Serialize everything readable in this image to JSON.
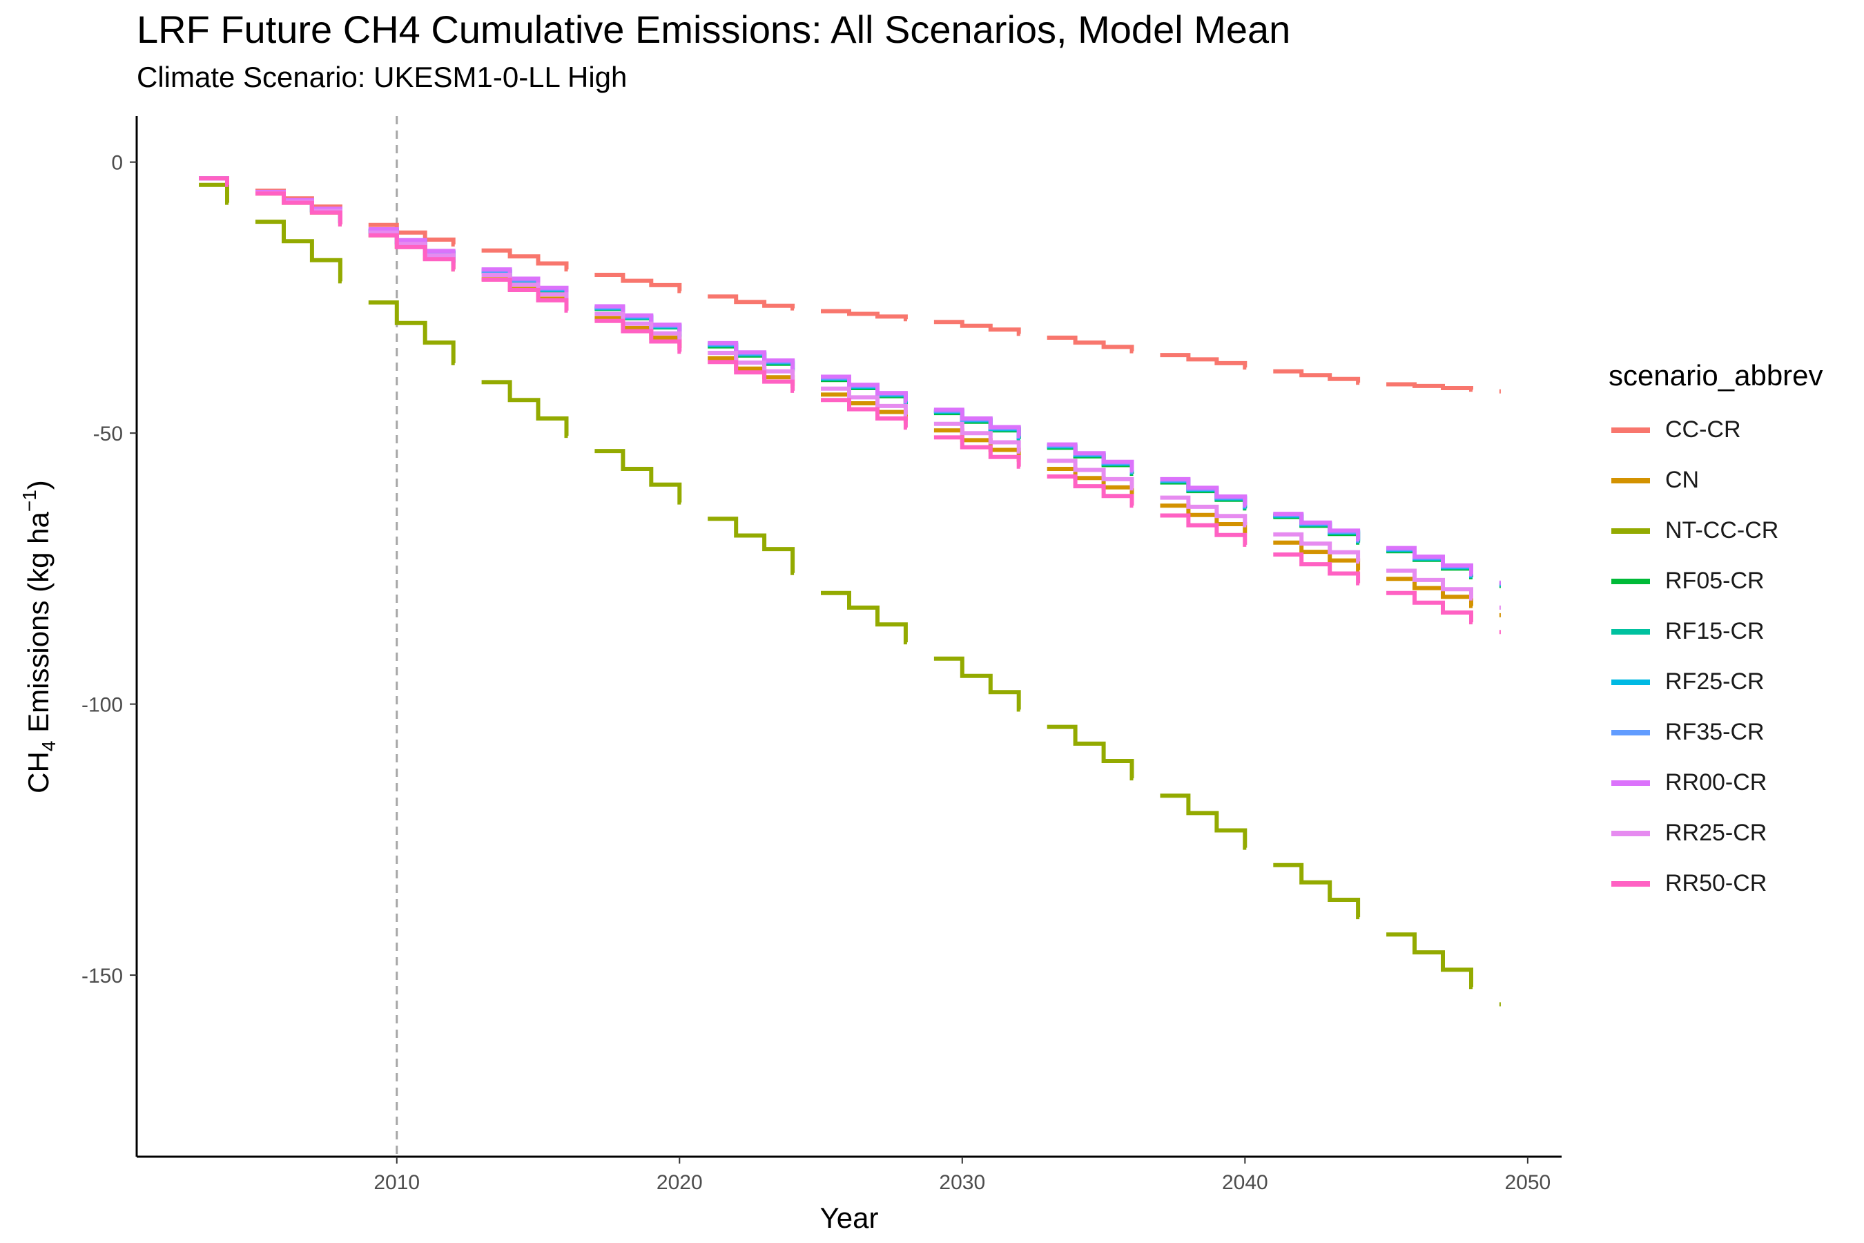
{
  "chart_data": {
    "type": "line",
    "title": "LRF  Future CH4 Cumulative Emissions: All Scenarios, Model Mean",
    "subtitle": "Climate Scenario: UKESM1-0-LL High",
    "xlabel": "Year",
    "ylabel_main": "CH",
    "ylabel_sub": "4",
    "ylabel_rest": " Emissions (kg ha",
    "ylabel_sup": "−1",
    "ylabel_close": ")",
    "xlim": [
      2000.8,
      2051.2
    ],
    "ylim": [
      -183.5,
      8.5
    ],
    "x_ticks": [
      2010,
      2020,
      2030,
      2040,
      2050
    ],
    "y_ticks": [
      0,
      -50,
      -100,
      -150
    ],
    "reference_line_x": 2010,
    "legend_title": "scenario_abbrev",
    "legend_position": "right",
    "grid": false,
    "series": [
      {
        "name": "CC-CR",
        "color": "#F8766D",
        "start_year": 2003,
        "values": [
          -3.0,
          -3.9,
          -5.3,
          -6.7,
          -8.2,
          -10.1,
          -11.6,
          -13.0,
          -14.3,
          -15.2,
          -16.3,
          -17.4,
          -18.7,
          -19.8,
          -20.8,
          -21.9,
          -22.7,
          -23.8,
          -24.8,
          -25.8,
          -26.5,
          -27.0,
          -27.5,
          -28.0,
          -28.5,
          -29.0,
          -29.5,
          -30.2,
          -30.9,
          -31.7,
          -32.4,
          -33.3,
          -34.1,
          -34.9,
          -35.6,
          -36.4,
          -37.1,
          -37.9,
          -38.6,
          -39.3,
          -40.0,
          -40.7,
          -41.0,
          -41.3,
          -41.7,
          -42.0,
          -42.3
        ]
      },
      {
        "name": "CN",
        "color": "#D39200",
        "start_year": 2003,
        "values": [
          -3.0,
          -4.2,
          -5.8,
          -7.5,
          -9.3,
          -11.5,
          -13.5,
          -15.6,
          -17.8,
          -19.8,
          -21.6,
          -23.4,
          -25.2,
          -27.0,
          -28.8,
          -30.6,
          -32.4,
          -34.3,
          -36.2,
          -38.1,
          -39.7,
          -41.3,
          -42.9,
          -44.5,
          -46.1,
          -47.7,
          -49.5,
          -51.3,
          -53.1,
          -54.9,
          -56.6,
          -58.3,
          -60.0,
          -61.7,
          -63.4,
          -65.1,
          -66.8,
          -68.5,
          -70.2,
          -71.9,
          -73.5,
          -75.3,
          -76.9,
          -78.6,
          -80.2,
          -81.9,
          -83.6
        ]
      },
      {
        "name": "NT-CC-CR",
        "color": "#93AA00",
        "start_year": 2003,
        "values": [
          -4.2,
          -7.5,
          -11.0,
          -14.6,
          -18.1,
          -22.0,
          -25.9,
          -29.7,
          -33.3,
          -37.1,
          -40.6,
          -43.9,
          -47.3,
          -50.5,
          -53.3,
          -56.6,
          -59.5,
          -62.8,
          -65.8,
          -68.9,
          -71.4,
          -75.8,
          -79.5,
          -82.2,
          -85.3,
          -88.6,
          -91.6,
          -94.8,
          -97.8,
          -101.0,
          -104.2,
          -107.3,
          -110.5,
          -113.7,
          -116.9,
          -120.1,
          -123.3,
          -126.5,
          -129.7,
          -132.9,
          -136.1,
          -139.3,
          -142.5,
          -145.8,
          -149.0,
          -152.2,
          -155.4
        ]
      },
      {
        "name": "RF05-CR",
        "color": "#00BA38",
        "start_year": 2003,
        "values": [
          -3.0,
          -4.1,
          -5.6,
          -7.2,
          -8.9,
          -10.9,
          -12.8,
          -14.8,
          -16.8,
          -18.6,
          -20.3,
          -22.0,
          -23.7,
          -25.4,
          -27.1,
          -28.8,
          -30.5,
          -32.2,
          -34.0,
          -35.7,
          -37.2,
          -38.7,
          -40.2,
          -41.7,
          -43.2,
          -44.7,
          -46.3,
          -47.9,
          -49.5,
          -51.1,
          -52.7,
          -54.3,
          -55.9,
          -57.5,
          -59.1,
          -60.7,
          -62.3,
          -63.9,
          -65.5,
          -67.1,
          -68.6,
          -70.2,
          -71.8,
          -73.4,
          -75.0,
          -76.6,
          -78.2
        ]
      },
      {
        "name": "RF15-CR",
        "color": "#00C19F",
        "start_year": 2003,
        "values": [
          -3.0,
          -4.1,
          -5.6,
          -7.2,
          -8.9,
          -10.9,
          -12.8,
          -14.8,
          -16.8,
          -18.5,
          -20.2,
          -21.9,
          -23.6,
          -25.3,
          -27.0,
          -28.7,
          -30.4,
          -32.1,
          -33.8,
          -35.5,
          -37.0,
          -38.5,
          -40.0,
          -41.5,
          -43.0,
          -44.5,
          -46.1,
          -47.7,
          -49.3,
          -50.9,
          -52.5,
          -54.1,
          -55.7,
          -57.3,
          -58.9,
          -60.5,
          -62.1,
          -63.7,
          -65.3,
          -66.9,
          -68.4,
          -70.0,
          -71.6,
          -73.2,
          -74.8,
          -76.4,
          -78.0
        ]
      },
      {
        "name": "RF25-CR",
        "color": "#00B9E3",
        "start_year": 2003,
        "values": [
          -3.0,
          -4.1,
          -5.6,
          -7.2,
          -8.8,
          -10.8,
          -12.7,
          -14.7,
          -16.7,
          -18.4,
          -20.1,
          -21.8,
          -23.5,
          -25.2,
          -26.9,
          -28.6,
          -30.3,
          -32.0,
          -33.7,
          -35.4,
          -36.9,
          -38.4,
          -39.9,
          -41.4,
          -42.9,
          -44.4,
          -46.0,
          -47.6,
          -49.2,
          -50.8,
          -52.4,
          -54.0,
          -55.6,
          -57.2,
          -58.8,
          -60.4,
          -62.0,
          -63.6,
          -65.2,
          -66.8,
          -68.3,
          -69.9,
          -71.5,
          -73.1,
          -74.7,
          -76.3,
          -77.9
        ]
      },
      {
        "name": "RF35-CR",
        "color": "#619CFF",
        "start_year": 2003,
        "values": [
          -3.0,
          -4.1,
          -5.6,
          -7.1,
          -8.8,
          -10.8,
          -12.6,
          -14.6,
          -16.6,
          -18.3,
          -20.0,
          -21.7,
          -23.4,
          -25.1,
          -26.8,
          -28.5,
          -30.2,
          -31.9,
          -33.6,
          -35.3,
          -36.8,
          -38.3,
          -39.8,
          -41.3,
          -42.8,
          -44.3,
          -45.9,
          -47.5,
          -49.1,
          -50.7,
          -52.3,
          -53.9,
          -55.5,
          -57.1,
          -58.7,
          -60.3,
          -61.9,
          -63.5,
          -65.1,
          -66.7,
          -68.2,
          -69.8,
          -71.4,
          -73.0,
          -74.6,
          -76.2,
          -77.8
        ]
      },
      {
        "name": "RR00-CR",
        "color": "#DB72FB",
        "start_year": 2003,
        "values": [
          -3.0,
          -4.0,
          -5.5,
          -7.0,
          -8.6,
          -10.6,
          -12.4,
          -14.4,
          -16.4,
          -18.1,
          -19.8,
          -21.5,
          -23.2,
          -24.9,
          -26.6,
          -28.3,
          -30.0,
          -31.7,
          -33.4,
          -35.1,
          -36.6,
          -38.1,
          -39.6,
          -41.1,
          -42.6,
          -44.1,
          -45.7,
          -47.3,
          -48.9,
          -50.5,
          -52.1,
          -53.7,
          -55.3,
          -56.9,
          -58.5,
          -60.1,
          -61.7,
          -63.3,
          -64.9,
          -66.5,
          -68.0,
          -69.6,
          -71.2,
          -72.8,
          -74.4,
          -76.0,
          -77.6
        ]
      },
      {
        "name": "RR25-CR",
        "color": "#E68BF0",
        "start_year": 2003,
        "values": [
          -3.0,
          -4.1,
          -5.7,
          -7.3,
          -9.0,
          -11.1,
          -13.0,
          -15.1,
          -17.2,
          -19.0,
          -20.8,
          -22.6,
          -24.4,
          -26.2,
          -28.0,
          -29.8,
          -31.6,
          -33.4,
          -35.2,
          -37.0,
          -38.6,
          -40.2,
          -41.8,
          -43.4,
          -45.0,
          -46.6,
          -48.3,
          -50.0,
          -51.7,
          -53.4,
          -55.1,
          -56.8,
          -58.5,
          -60.2,
          -61.9,
          -63.6,
          -65.3,
          -67.0,
          -68.7,
          -70.4,
          -72.0,
          -73.7,
          -75.4,
          -77.1,
          -78.8,
          -80.5,
          -82.2
        ]
      },
      {
        "name": "RR50-CR",
        "color": "#FF61C3",
        "start_year": 2003,
        "values": [
          -3.0,
          -4.2,
          -5.8,
          -7.5,
          -9.3,
          -11.5,
          -13.5,
          -15.7,
          -17.9,
          -19.8,
          -21.7,
          -23.6,
          -25.5,
          -27.4,
          -29.3,
          -31.2,
          -33.1,
          -35.0,
          -36.9,
          -38.8,
          -40.5,
          -42.2,
          -43.9,
          -45.6,
          -47.3,
          -49.0,
          -50.8,
          -52.6,
          -54.4,
          -56.2,
          -58.0,
          -59.8,
          -61.6,
          -63.4,
          -65.2,
          -67.0,
          -68.8,
          -70.6,
          -72.4,
          -74.2,
          -75.9,
          -77.7,
          -79.5,
          -81.3,
          -83.1,
          -84.9,
          -86.7
        ]
      }
    ]
  }
}
